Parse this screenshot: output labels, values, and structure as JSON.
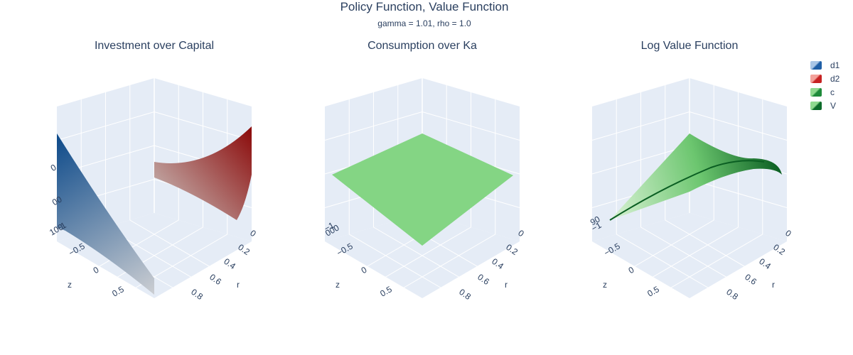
{
  "title": "Policy Function, Value Function",
  "subtitle": "gamma = 1.01, rho = 1.0",
  "legend": [
    {
      "name": "d1",
      "color_light": "#a9c6e6",
      "color_dark": "#1f5fa6"
    },
    {
      "name": "d2",
      "color_light": "#f3a19a",
      "color_dark": "#c62222"
    },
    {
      "name": "c",
      "color_light": "#8fd98f",
      "color_dark": "#1e8a3a"
    },
    {
      "name": "V",
      "color_light": "#8fd98f",
      "color_dark": "#0d6b2a"
    }
  ],
  "colors": {
    "d1_low": "#0d4a8a",
    "d1_high": "#c9ccd1",
    "d2_low": "#c9c0bc",
    "d2_high": "#8b0a0a",
    "c_flat": "#84d584",
    "v_light": "#d9f2d5",
    "v_dark": "#0a5e22",
    "scene_bg": "#e5ecf6",
    "grid": "#ffffff"
  },
  "chart_data": [
    {
      "type": "surface",
      "title": "Investment over Capital",
      "series": [
        {
          "name": "d1"
        },
        {
          "name": "d2"
        }
      ],
      "x_axis": {
        "label": "r",
        "tick_labels": [
          "0",
          "0.2",
          "0.4",
          "0.6",
          "0.8"
        ]
      },
      "y_axis": {
        "label": "z",
        "tick_labels": [
          "−1",
          "−0.5",
          "0",
          "0.5"
        ]
      },
      "z_axis": {
        "label": "",
        "tick_labels": [
          "0",
          "00",
          "100"
        ]
      }
    },
    {
      "type": "surface",
      "title": "Consumption over Ka",
      "series": [
        {
          "name": "c"
        }
      ],
      "x_axis": {
        "label": "r",
        "tick_labels": [
          "0",
          "0.2",
          "0.4",
          "0.6",
          "0.8"
        ]
      },
      "y_axis": {
        "label": "z",
        "tick_labels": [
          "−1",
          "−0.5",
          "0",
          "0.5"
        ]
      },
      "z_axis": {
        "label": "",
        "tick_labels": [
          "000"
        ]
      }
    },
    {
      "type": "surface",
      "title": "Log Value Function",
      "series": [
        {
          "name": "V"
        }
      ],
      "x_axis": {
        "label": "r",
        "tick_labels": [
          "0",
          "0.2",
          "0.4",
          "0.6",
          "0.8"
        ]
      },
      "y_axis": {
        "label": "z",
        "tick_labels": [
          "−1",
          "−0.5",
          "0",
          "0.5"
        ]
      },
      "z_axis": {
        "label": "",
        "tick_labels": [
          "90"
        ]
      }
    }
  ]
}
